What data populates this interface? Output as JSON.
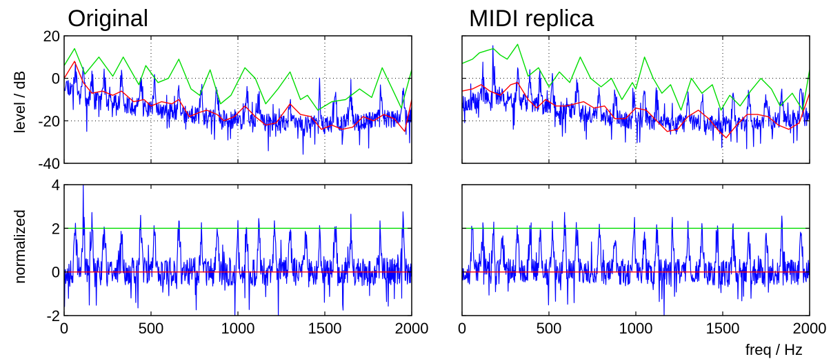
{
  "figure": {
    "xlabel_bottom": "freq / Hz",
    "ylabel_top": "level / dB",
    "ylabel_bottom": "normalized"
  },
  "colors": {
    "spectrum": "#0000ff",
    "upper_envelope": "#00dd00",
    "smoothed": "#ff0000",
    "grid": "#000000",
    "background": "#ffffff"
  },
  "chart_data": [
    {
      "id": "orig_level",
      "type": "line",
      "title": "Original",
      "xlabel": "",
      "ylabel": "level / dB",
      "xlim": [
        0,
        2000
      ],
      "ylim": [
        -40,
        20
      ],
      "xticks": [
        0,
        500,
        1000,
        1500,
        2000
      ],
      "yticks": [
        -40,
        -20,
        0,
        20
      ],
      "xtick_labels": [],
      "ytick_labels": [
        "20",
        "0",
        "-20",
        "-40"
      ],
      "grid": "dotted",
      "series": [
        {
          "role": "spectrum",
          "color": "#0000ff",
          "seed": 11,
          "peaks": [
            65,
            110,
            160,
            230,
            330,
            440,
            520,
            660,
            790,
            880,
            1050,
            1120,
            1300,
            1470,
            1560,
            1650,
            1820,
            1950
          ],
          "base": [
            [
              0,
              -2
            ],
            [
              120,
              -10
            ],
            [
              300,
              -12
            ],
            [
              600,
              -16
            ],
            [
              1000,
              -20
            ],
            [
              1500,
              -22
            ],
            [
              2000,
              -18
            ]
          ],
          "jitter": 7,
          "min": -40
        },
        {
          "role": "upper_envelope",
          "color": "#00dd00",
          "points": [
            [
              0,
              6
            ],
            [
              60,
              14
            ],
            [
              120,
              2
            ],
            [
              200,
              10
            ],
            [
              280,
              1
            ],
            [
              340,
              10
            ],
            [
              430,
              -3
            ],
            [
              470,
              6
            ],
            [
              540,
              -2
            ],
            [
              600,
              0
            ],
            [
              660,
              9
            ],
            [
              730,
              -5
            ],
            [
              780,
              -8
            ],
            [
              840,
              4
            ],
            [
              900,
              -12
            ],
            [
              960,
              -8
            ],
            [
              1040,
              5
            ],
            [
              1100,
              0
            ],
            [
              1160,
              -12
            ],
            [
              1230,
              -5
            ],
            [
              1300,
              3
            ],
            [
              1360,
              -10
            ],
            [
              1400,
              -8
            ],
            [
              1460,
              -15
            ],
            [
              1540,
              -11
            ],
            [
              1620,
              -10
            ],
            [
              1700,
              -5
            ],
            [
              1770,
              -9
            ],
            [
              1830,
              5
            ],
            [
              1900,
              -7
            ],
            [
              1940,
              -14
            ],
            [
              2000,
              4
            ]
          ]
        },
        {
          "role": "smoothed",
          "color": "#ff0000",
          "points": [
            [
              0,
              0
            ],
            [
              60,
              8
            ],
            [
              110,
              -2
            ],
            [
              160,
              -7
            ],
            [
              220,
              -6
            ],
            [
              280,
              -8
            ],
            [
              330,
              -6
            ],
            [
              400,
              -11
            ],
            [
              460,
              -10
            ],
            [
              500,
              -13
            ],
            [
              560,
              -11
            ],
            [
              620,
              -12
            ],
            [
              660,
              -10
            ],
            [
              720,
              -18
            ],
            [
              780,
              -16
            ],
            [
              820,
              -15
            ],
            [
              880,
              -17
            ],
            [
              920,
              -20
            ],
            [
              980,
              -18
            ],
            [
              1040,
              -13
            ],
            [
              1100,
              -18
            ],
            [
              1160,
              -22
            ],
            [
              1220,
              -21
            ],
            [
              1300,
              -12
            ],
            [
              1360,
              -17
            ],
            [
              1420,
              -18
            ],
            [
              1480,
              -24
            ],
            [
              1540,
              -22
            ],
            [
              1600,
              -24
            ],
            [
              1660,
              -23
            ],
            [
              1720,
              -18
            ],
            [
              1780,
              -20
            ],
            [
              1840,
              -17
            ],
            [
              1900,
              -19
            ],
            [
              1960,
              -25
            ],
            [
              2000,
              -10
            ]
          ]
        }
      ]
    },
    {
      "id": "replica_level",
      "type": "line",
      "title": "MIDI replica",
      "xlabel": "",
      "ylabel": "",
      "xlim": [
        0,
        2000
      ],
      "ylim": [
        -40,
        20
      ],
      "xticks": [
        0,
        500,
        1000,
        1500,
        2000
      ],
      "yticks": [
        -40,
        -20,
        0,
        20
      ],
      "xtick_labels": [],
      "ytick_labels": [],
      "grid": "dotted",
      "series": [
        {
          "role": "spectrum",
          "color": "#0000ff",
          "seed": 23,
          "peaks": [
            120,
            180,
            320,
            390,
            450,
            520,
            660,
            790,
            880,
            990,
            1050,
            1120,
            1300,
            1380,
            1560,
            1650,
            1750,
            1840,
            1950
          ],
          "base": [
            [
              0,
              -12
            ],
            [
              200,
              -8
            ],
            [
              400,
              -12
            ],
            [
              700,
              -17
            ],
            [
              1000,
              -20
            ],
            [
              1500,
              -22
            ],
            [
              2000,
              -18
            ]
          ],
          "jitter": 7,
          "min": -40
        },
        {
          "role": "upper_envelope",
          "color": "#00dd00",
          "points": [
            [
              0,
              7
            ],
            [
              60,
              9
            ],
            [
              100,
              12
            ],
            [
              140,
              13
            ],
            [
              180,
              14
            ],
            [
              220,
              11
            ],
            [
              260,
              9
            ],
            [
              320,
              16
            ],
            [
              380,
              1
            ],
            [
              440,
              5
            ],
            [
              500,
              -4
            ],
            [
              560,
              3
            ],
            [
              620,
              -2
            ],
            [
              680,
              10
            ],
            [
              740,
              0
            ],
            [
              800,
              -4
            ],
            [
              860,
              0
            ],
            [
              920,
              -10
            ],
            [
              980,
              -2
            ],
            [
              1000,
              -5
            ],
            [
              1050,
              10
            ],
            [
              1100,
              0
            ],
            [
              1150,
              -7
            ],
            [
              1200,
              -3
            ],
            [
              1260,
              -15
            ],
            [
              1320,
              0
            ],
            [
              1380,
              -7
            ],
            [
              1440,
              -3
            ],
            [
              1490,
              -15
            ],
            [
              1540,
              -8
            ],
            [
              1600,
              -13
            ],
            [
              1660,
              -6
            ],
            [
              1720,
              0
            ],
            [
              1780,
              -5
            ],
            [
              1830,
              -13
            ],
            [
              1900,
              -7
            ],
            [
              1960,
              -15
            ],
            [
              2000,
              4
            ]
          ]
        },
        {
          "role": "smoothed",
          "color": "#ff0000",
          "points": [
            [
              0,
              -6
            ],
            [
              60,
              -5
            ],
            [
              110,
              -3
            ],
            [
              160,
              -6
            ],
            [
              220,
              -8
            ],
            [
              280,
              -3
            ],
            [
              320,
              -2
            ],
            [
              380,
              -10
            ],
            [
              430,
              -14
            ],
            [
              480,
              -10
            ],
            [
              540,
              -13
            ],
            [
              600,
              -13
            ],
            [
              650,
              -12
            ],
            [
              700,
              -11
            ],
            [
              760,
              -14
            ],
            [
              820,
              -13
            ],
            [
              880,
              -19
            ],
            [
              940,
              -19
            ],
            [
              1000,
              -14
            ],
            [
              1060,
              -15
            ],
            [
              1120,
              -20
            ],
            [
              1180,
              -25
            ],
            [
              1240,
              -24
            ],
            [
              1300,
              -18
            ],
            [
              1360,
              -15
            ],
            [
              1420,
              -19
            ],
            [
              1480,
              -25
            ],
            [
              1520,
              -28
            ],
            [
              1580,
              -22
            ],
            [
              1640,
              -17
            ],
            [
              1700,
              -17
            ],
            [
              1760,
              -18
            ],
            [
              1820,
              -22
            ],
            [
              1880,
              -24
            ],
            [
              1940,
              -21
            ],
            [
              2000,
              -7
            ]
          ]
        }
      ]
    },
    {
      "id": "orig_norm",
      "type": "line",
      "title": "",
      "xlabel": "",
      "ylabel": "normalized",
      "xlim": [
        0,
        2000
      ],
      "ylim": [
        -2,
        4
      ],
      "xticks": [
        0,
        500,
        1000,
        1500,
        2000
      ],
      "yticks": [
        -2,
        0,
        2,
        4
      ],
      "xtick_labels": [
        "0",
        "500",
        "1000",
        "1500",
        "2000"
      ],
      "ytick_labels": [
        "4",
        "2",
        "0",
        "-2"
      ],
      "grid": "none",
      "series": [
        {
          "role": "spectrum",
          "color": "#0000ff",
          "seed": 37,
          "peaks": [
            65,
            110,
            160,
            230,
            330,
            440,
            520,
            660,
            790,
            880,
            1000,
            1050,
            1120,
            1210,
            1300,
            1390,
            1470,
            1560,
            1650,
            1820,
            1950
          ],
          "base": [
            [
              0,
              0
            ],
            [
              2000,
              0
            ]
          ],
          "jitter": 1.1,
          "peak_height": 2.6,
          "peak_overrides": {
            "110": 3.9
          },
          "min": -2
        },
        {
          "role": "threshold",
          "color": "#00dd00",
          "constant": 2
        },
        {
          "role": "zero",
          "color": "#ff0000",
          "constant": 0
        }
      ]
    },
    {
      "id": "replica_norm",
      "type": "line",
      "title": "",
      "xlabel": "freq / Hz",
      "ylabel": "",
      "xlim": [
        0,
        2000
      ],
      "ylim": [
        -2,
        4
      ],
      "xticks": [
        0,
        500,
        1000,
        1500,
        2000
      ],
      "yticks": [
        -2,
        0,
        2,
        4
      ],
      "xtick_labels": [
        "0",
        "500",
        "1000",
        "1500",
        "2000"
      ],
      "ytick_labels": [],
      "grid": "none",
      "series": [
        {
          "role": "spectrum",
          "color": "#0000ff",
          "seed": 53,
          "peaks": [
            60,
            120,
            180,
            230,
            320,
            390,
            450,
            520,
            590,
            660,
            790,
            880,
            990,
            1050,
            1120,
            1210,
            1300,
            1380,
            1470,
            1560,
            1650,
            1750,
            1840,
            1950
          ],
          "base": [
            [
              0,
              0
            ],
            [
              2000,
              0
            ]
          ],
          "jitter": 1.0,
          "peak_height": 2.4,
          "min": -2
        },
        {
          "role": "threshold",
          "color": "#00dd00",
          "constant": 2
        },
        {
          "role": "zero",
          "color": "#ff0000",
          "constant": 0
        }
      ]
    }
  ]
}
